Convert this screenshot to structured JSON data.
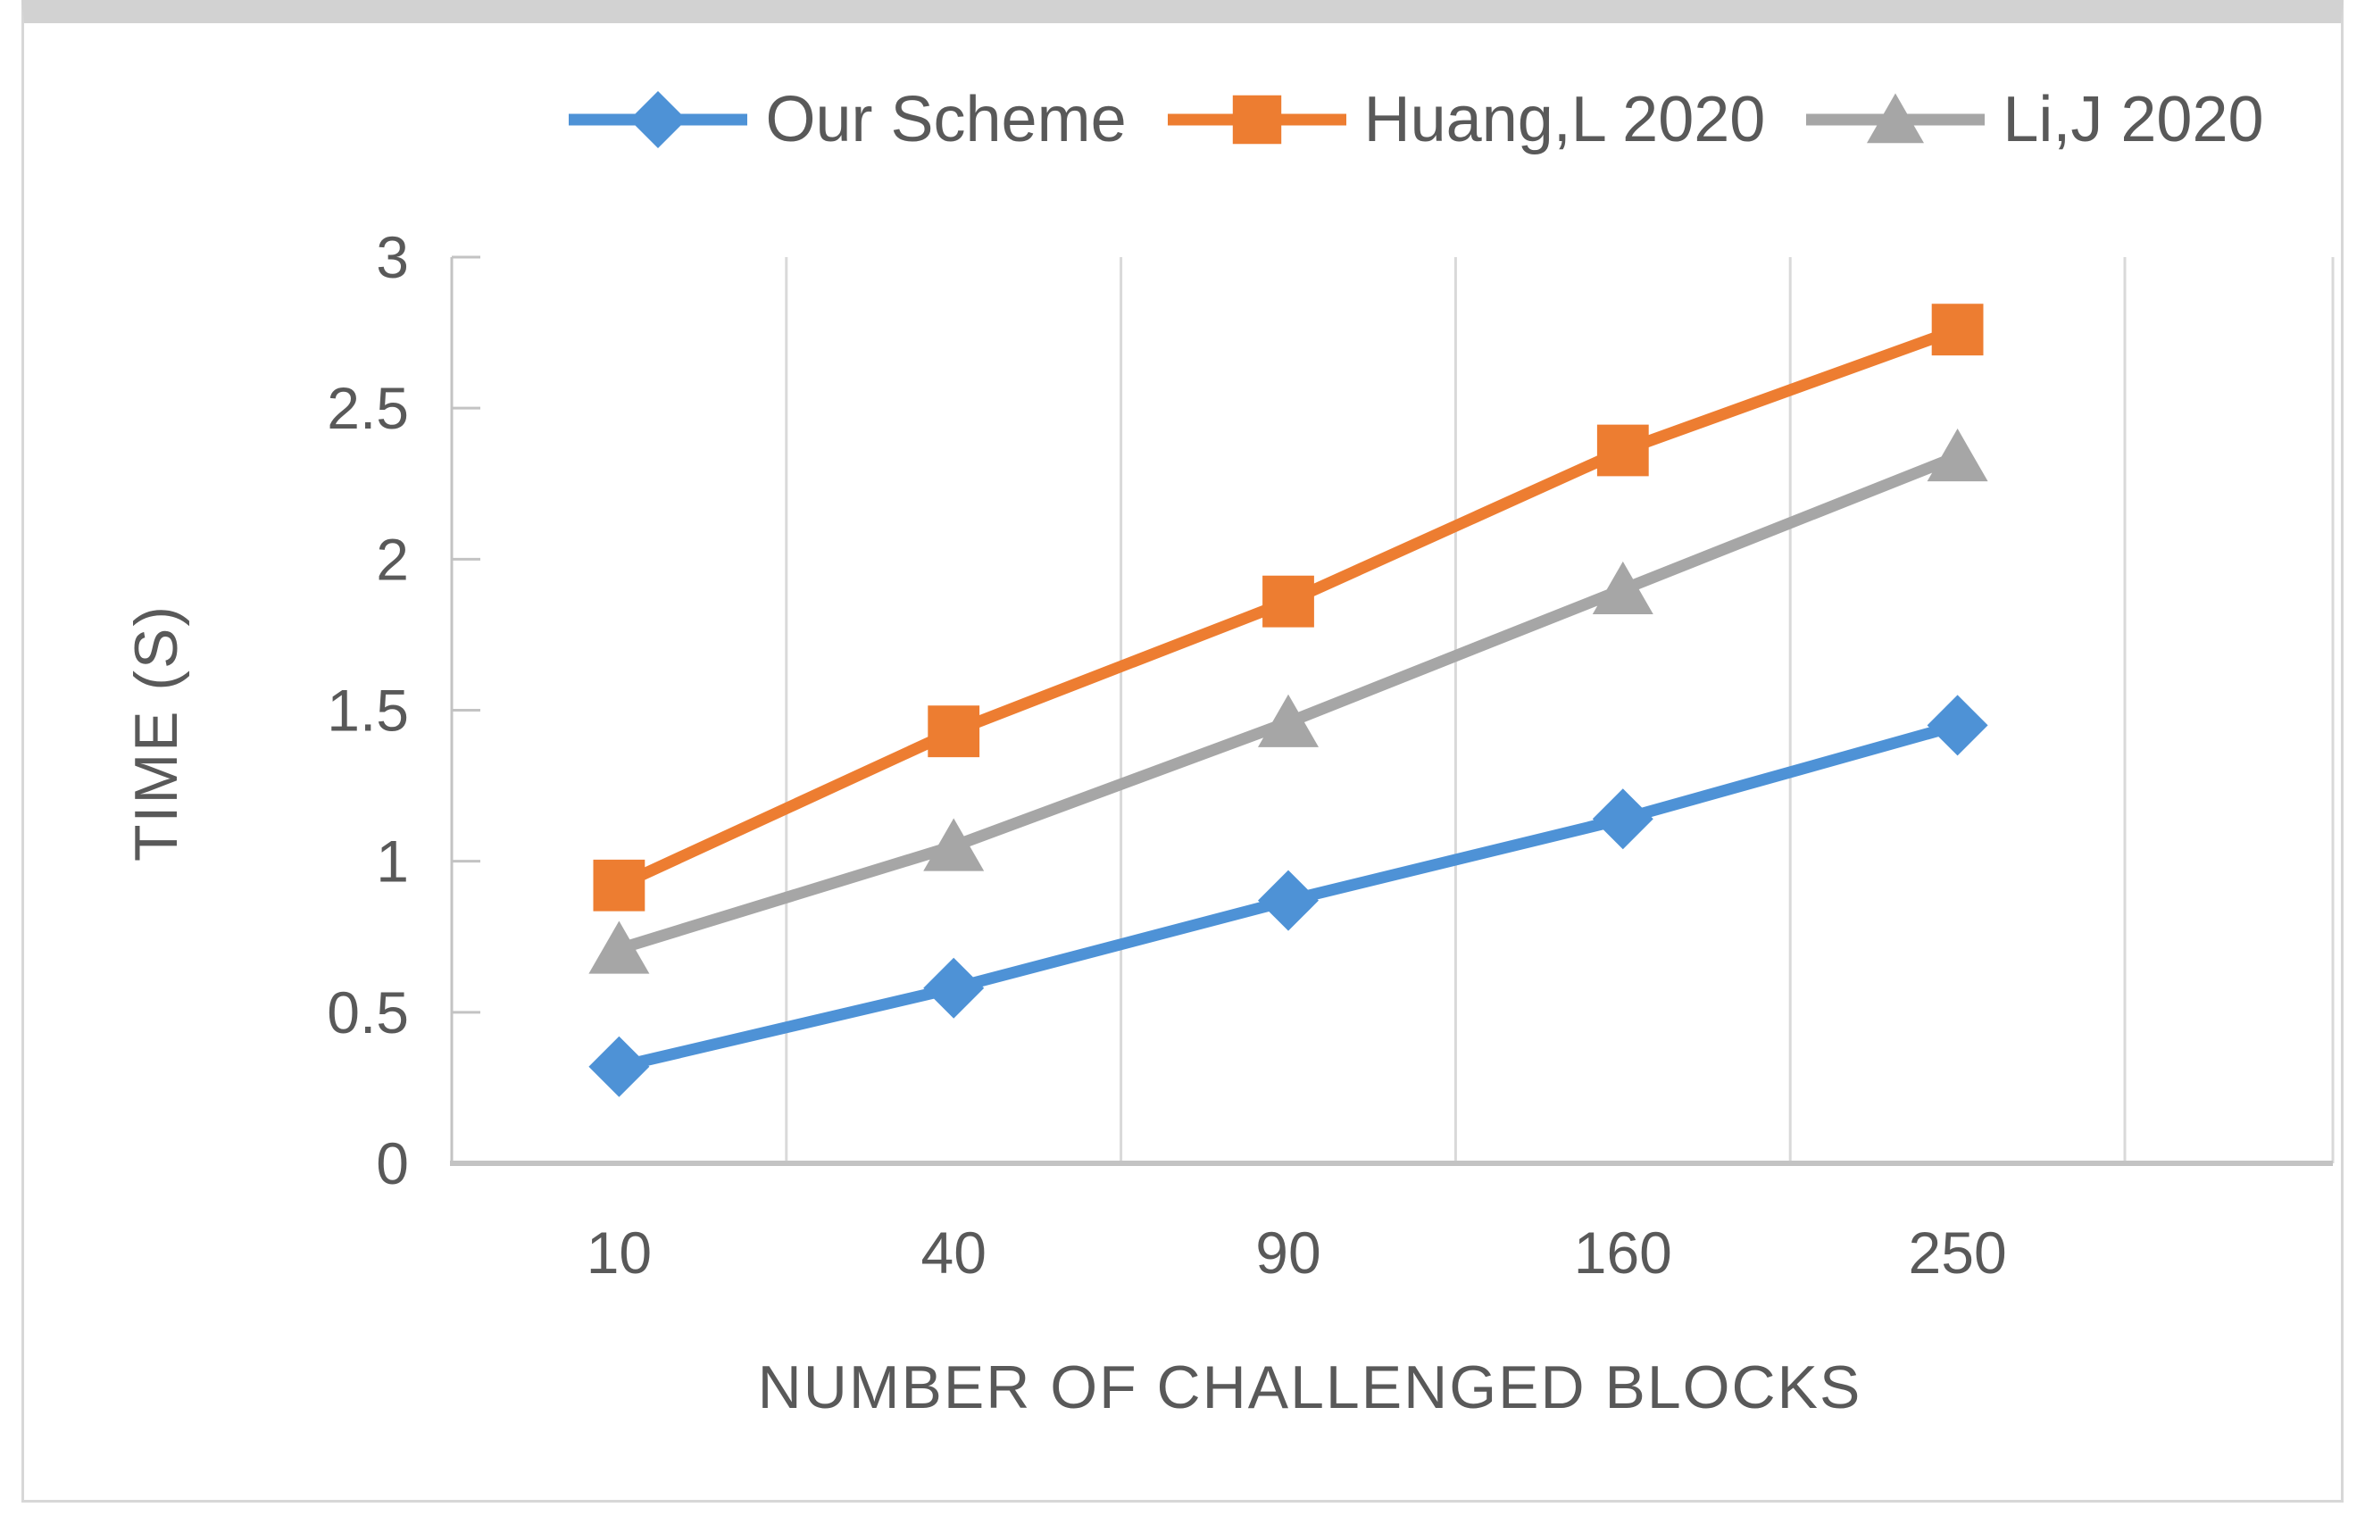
{
  "chart_data": {
    "type": "line",
    "title": "",
    "xlabel": "NUMBER OF CHALLENGED BLOCKS",
    "ylabel": "TIME (S)",
    "categories": [
      "10",
      "40",
      "90",
      "160",
      "250"
    ],
    "ylim": [
      0,
      3
    ],
    "y_ticks": [
      0,
      0.5,
      1,
      1.5,
      2,
      2.5,
      3
    ],
    "y_tick_labels": [
      "0",
      "0.5",
      "1",
      "1.5",
      "2",
      "2.5",
      "3"
    ],
    "grid": "vertical-only",
    "legend_position": "top-center",
    "series": [
      {
        "name": "Our Scheme",
        "color": "#4E92D6",
        "marker": "diamond",
        "values": [
          0.32,
          0.58,
          0.87,
          1.14,
          1.45
        ]
      },
      {
        "name": "Huang,L 2020",
        "color": "#ED7D31",
        "marker": "square",
        "values": [
          0.92,
          1.43,
          1.86,
          2.36,
          2.76
        ]
      },
      {
        "name": "Li,J 2020",
        "color": "#A6A6A6",
        "marker": "triangle",
        "values": [
          0.71,
          1.05,
          1.46,
          1.9,
          2.34
        ]
      }
    ]
  },
  "colors": {
    "text": "#595959",
    "tick_text": "#595959",
    "axis_line": "#c3c3c3",
    "gridline": "#d9d9d9",
    "frame_border": "#d2d2d2",
    "background": "#ffffff"
  }
}
